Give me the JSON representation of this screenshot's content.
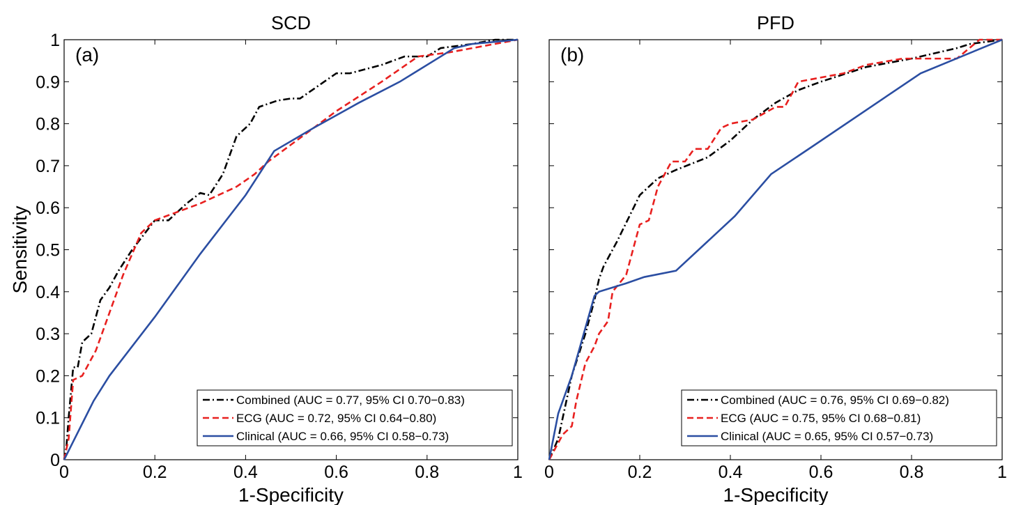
{
  "chart_data": [
    {
      "type": "line",
      "title": "SCD",
      "annotation": "(a)",
      "xlabel": "1-Specificity",
      "ylabel": "Sensitivity",
      "xlim": [
        0,
        1
      ],
      "ylim": [
        0,
        1
      ],
      "xticks": [
        0,
        0.2,
        0.4,
        0.6,
        0.8,
        1
      ],
      "yticks": [
        0,
        0.1,
        0.2,
        0.3,
        0.4,
        0.5,
        0.6,
        0.7,
        0.8,
        0.9,
        1
      ],
      "show_ytick_labels": true,
      "legend": "lower right",
      "series": [
        {
          "name": "Combined (AUC = 0.77, 95% CI 0.70−0.83)",
          "color": "#000000",
          "linestyle": "dashdot",
          "x": [
            0,
            0.005,
            0.01,
            0.02,
            0.03,
            0.04,
            0.06,
            0.08,
            0.1,
            0.12,
            0.15,
            0.2,
            0.23,
            0.27,
            0.3,
            0.32,
            0.35,
            0.38,
            0.41,
            0.43,
            0.47,
            0.5,
            0.52,
            0.56,
            0.6,
            0.63,
            0.7,
            0.75,
            0.8,
            0.83,
            0.9,
            0.95,
            1
          ],
          "values": [
            0,
            0.03,
            0.1,
            0.22,
            0.22,
            0.28,
            0.3,
            0.38,
            0.41,
            0.45,
            0.5,
            0.57,
            0.57,
            0.61,
            0.635,
            0.63,
            0.68,
            0.77,
            0.8,
            0.84,
            0.855,
            0.86,
            0.86,
            0.89,
            0.92,
            0.92,
            0.94,
            0.96,
            0.96,
            0.98,
            0.99,
            1,
            1
          ]
        },
        {
          "name": "ECG (AUC = 0.72, 95% CI 0.64−0.80)",
          "color": "#e8201f",
          "linestyle": "dashed",
          "x": [
            0,
            0.01,
            0.02,
            0.04,
            0.07,
            0.1,
            0.13,
            0.17,
            0.2,
            0.25,
            0.3,
            0.38,
            0.42,
            0.45,
            0.5,
            0.55,
            0.6,
            0.7,
            0.78,
            0.85,
            0.9,
            1
          ],
          "values": [
            0,
            0.05,
            0.19,
            0.2,
            0.26,
            0.35,
            0.44,
            0.54,
            0.57,
            0.59,
            0.61,
            0.65,
            0.68,
            0.71,
            0.75,
            0.79,
            0.83,
            0.9,
            0.96,
            0.97,
            0.98,
            1
          ]
        },
        {
          "name": "Clinical (AUC = 0.66, 95% CI 0.58−0.73)",
          "color": "#2b4ea2",
          "linestyle": "solid",
          "x": [
            0,
            0.065,
            0.1,
            0.2,
            0.3,
            0.4,
            0.463,
            0.55,
            0.65,
            0.74,
            0.77,
            0.86,
            0.9,
            1
          ],
          "values": [
            0,
            0.14,
            0.2,
            0.34,
            0.49,
            0.63,
            0.735,
            0.79,
            0.85,
            0.9,
            0.92,
            0.98,
            0.99,
            1
          ]
        }
      ]
    },
    {
      "type": "line",
      "title": "PFD",
      "annotation": "(b)",
      "xlabel": "1-Specificity",
      "xlim": [
        0,
        1
      ],
      "ylim": [
        0,
        1
      ],
      "xticks": [
        0,
        0.2,
        0.4,
        0.6,
        0.8,
        1
      ],
      "yticks": [
        0,
        0.1,
        0.2,
        0.3,
        0.4,
        0.5,
        0.6,
        0.7,
        0.8,
        0.9,
        1
      ],
      "show_ytick_labels": false,
      "legend": "lower right",
      "series": [
        {
          "name": "Combined (AUC = 0.76, 95% CI 0.69−0.82)",
          "color": "#000000",
          "linestyle": "dashdot",
          "x": [
            0,
            0.02,
            0.05,
            0.08,
            0.1,
            0.11,
            0.12,
            0.15,
            0.2,
            0.24,
            0.28,
            0.35,
            0.4,
            0.45,
            0.5,
            0.55,
            0.6,
            0.7,
            0.8,
            0.9,
            0.93,
            1
          ],
          "values": [
            0,
            0.05,
            0.2,
            0.3,
            0.38,
            0.43,
            0.46,
            0.52,
            0.63,
            0.67,
            0.69,
            0.72,
            0.76,
            0.81,
            0.85,
            0.88,
            0.9,
            0.935,
            0.955,
            0.98,
            0.99,
            1
          ]
        },
        {
          "name": "ECG (AUC = 0.75, 95% CI 0.68−0.81)",
          "color": "#e8201f",
          "linestyle": "dashed",
          "x": [
            0,
            0.03,
            0.05,
            0.06,
            0.08,
            0.1,
            0.11,
            0.13,
            0.14,
            0.17,
            0.2,
            0.22,
            0.24,
            0.27,
            0.3,
            0.32,
            0.35,
            0.38,
            0.4,
            0.45,
            0.5,
            0.52,
            0.55,
            0.6,
            0.65,
            0.7,
            0.78,
            0.9,
            0.95,
            1
          ],
          "values": [
            0,
            0.06,
            0.08,
            0.14,
            0.23,
            0.27,
            0.3,
            0.33,
            0.4,
            0.44,
            0.56,
            0.57,
            0.65,
            0.71,
            0.71,
            0.74,
            0.74,
            0.79,
            0.8,
            0.81,
            0.84,
            0.84,
            0.9,
            0.91,
            0.92,
            0.94,
            0.955,
            0.955,
            1,
            1
          ]
        },
        {
          "name": "Clinical (AUC = 0.65, 95% CI 0.57−0.73)",
          "color": "#2b4ea2",
          "linestyle": "solid",
          "x": [
            0,
            0.02,
            0.05,
            0.1,
            0.11,
            0.14,
            0.17,
            0.21,
            0.28,
            0.41,
            0.49,
            0.58,
            0.82,
            1
          ],
          "values": [
            0,
            0.11,
            0.2,
            0.39,
            0.4,
            0.41,
            0.42,
            0.435,
            0.45,
            0.58,
            0.68,
            0.745,
            0.92,
            1
          ]
        }
      ]
    }
  ]
}
